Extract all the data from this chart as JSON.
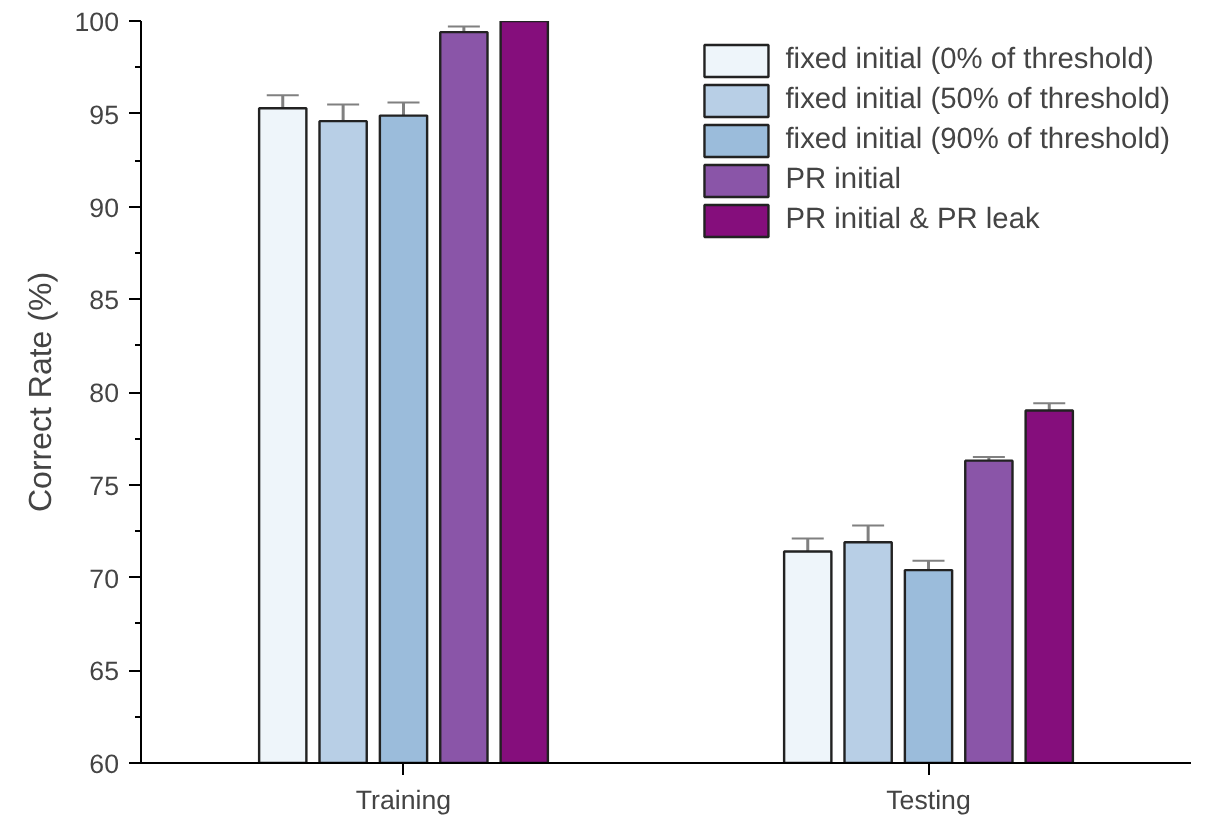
{
  "chart_data": {
    "type": "bar",
    "ylabel": "Correct Rate (%)",
    "categories": [
      "Training",
      "Testing"
    ],
    "ylim": [
      60,
      100
    ],
    "yticks": [
      60,
      65,
      70,
      75,
      80,
      85,
      90,
      95,
      100
    ],
    "grid": false,
    "legend": "top right",
    "series": [
      {
        "name": "fixed initial (0% of threshold)",
        "color": "#eef5fa",
        "values": [
          95.3,
          71.4
        ],
        "errors": [
          0.7,
          0.7
        ]
      },
      {
        "name": "fixed initial (50% of threshold)",
        "color": "#b8cfe6",
        "values": [
          94.6,
          71.9
        ],
        "errors": [
          0.9,
          0.9
        ]
      },
      {
        "name": "fixed initial (90% of threshold)",
        "color": "#9bbcdb",
        "values": [
          94.9,
          70.4
        ],
        "errors": [
          0.7,
          0.5
        ]
      },
      {
        "name": "PR initial",
        "color": "#8a55a8",
        "values": [
          99.4,
          76.3
        ],
        "errors": [
          0.3,
          0.2
        ]
      },
      {
        "name": "PR initial & PR leak",
        "color": "#850e7c",
        "values": [
          100,
          79.0
        ],
        "errors": [
          0.1,
          0.4
        ]
      }
    ]
  }
}
